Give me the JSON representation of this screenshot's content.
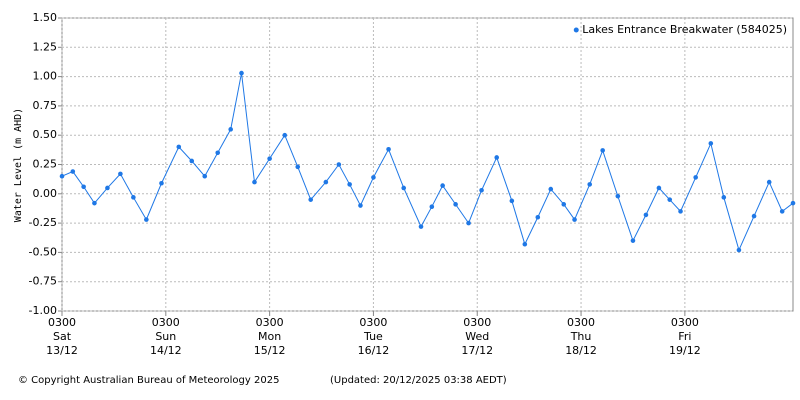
{
  "chart_data": {
    "type": "line",
    "y_label": "Water Level (m AHD)",
    "legend_position": "top-right",
    "grid": true,
    "xlim": [
      "13/12 03:00",
      "20/12 04:00"
    ],
    "xticks": [
      {
        "value": "13/12 03:00",
        "label": [
          "0300",
          "Sat",
          "13/12"
        ]
      },
      {
        "value": "14/12 03:00",
        "label": [
          "0300",
          "Sun",
          "14/12"
        ]
      },
      {
        "value": "15/12 03:00",
        "label": [
          "0300",
          "Mon",
          "15/12"
        ]
      },
      {
        "value": "16/12 03:00",
        "label": [
          "0300",
          "Tue",
          "16/12"
        ]
      },
      {
        "value": "17/12 03:00",
        "label": [
          "0300",
          "Wed",
          "17/12"
        ]
      },
      {
        "value": "18/12 03:00",
        "label": [
          "0300",
          "Thu",
          "18/12"
        ]
      },
      {
        "value": "19/12 03:00",
        "label": [
          "0300",
          "Fri",
          "19/12"
        ]
      }
    ],
    "ylim": [
      -1.0,
      1.5
    ],
    "yticks": [
      {
        "value": 1.5,
        "label": "1.50"
      },
      {
        "value": 1.25,
        "label": "1.25"
      },
      {
        "value": 1.0,
        "label": "1.00"
      },
      {
        "value": 0.75,
        "label": "0.75"
      },
      {
        "value": 0.5,
        "label": "0.50"
      },
      {
        "value": 0.25,
        "label": "0.25"
      },
      {
        "value": 0,
        "label": "0.00"
      },
      {
        "value": -0.25,
        "label": "-0.25"
      },
      {
        "value": -0.5,
        "label": "-0.50"
      },
      {
        "value": -0.75,
        "label": "-0.75"
      },
      {
        "value": -1.0,
        "label": "-1.00"
      }
    ],
    "x": [
      "13/12 03:00",
      "13/12 05:30",
      "13/12 08:00",
      "13/12 10:30",
      "13/12 13:30",
      "13/12 16:30",
      "13/12 19:30",
      "13/12 22:30",
      "14/12 02:00",
      "14/12 06:00",
      "14/12 09:00",
      "14/12 12:00",
      "14/12 15:00",
      "14/12 18:00",
      "14/12 20:30",
      "14/12 23:30",
      "15/12 03:00",
      "15/12 06:30",
      "15/12 09:30",
      "15/12 12:30",
      "15/12 16:00",
      "15/12 19:00",
      "15/12 21:30",
      "16/12 00:00",
      "16/12 03:00",
      "16/12 06:30",
      "16/12 10:00",
      "16/12 14:00",
      "16/12 16:30",
      "16/12 19:00",
      "16/12 22:00",
      "17/12 01:00",
      "17/12 04:00",
      "17/12 07:30",
      "17/12 11:00",
      "17/12 14:00",
      "17/12 17:00",
      "17/12 20:00",
      "17/12 23:00",
      "18/12 01:30",
      "18/12 05:00",
      "18/12 08:00",
      "18/12 11:30",
      "18/12 15:00",
      "18/12 18:00",
      "18/12 21:00",
      "18/12 23:30",
      "19/12 02:00",
      "19/12 05:30",
      "19/12 09:00",
      "19/12 12:00",
      "19/12 15:30",
      "19/12 19:00",
      "19/12 22:30",
      "20/12 01:30",
      "20/12 04:00"
    ],
    "series": [
      {
        "name": "Lakes Entrance Breakwater (584025)",
        "color": "#1f78e6",
        "values": [
          0.15,
          0.19,
          0.06,
          -0.08,
          0.05,
          0.17,
          -0.03,
          -0.22,
          0.09,
          0.4,
          0.28,
          0.15,
          0.35,
          0.55,
          1.03,
          0.1,
          0.3,
          0.5,
          0.23,
          -0.05,
          0.1,
          0.25,
          0.08,
          -0.1,
          0.14,
          0.38,
          0.05,
          -0.28,
          -0.11,
          0.07,
          -0.09,
          -0.25,
          0.03,
          0.31,
          -0.06,
          -0.43,
          -0.2,
          0.04,
          -0.09,
          -0.22,
          0.08,
          0.37,
          -0.02,
          -0.4,
          -0.18,
          0.05,
          -0.05,
          -0.15,
          0.14,
          0.43,
          -0.03,
          -0.48,
          -0.19,
          0.1,
          -0.15,
          -0.08
        ]
      }
    ]
  },
  "footer": {
    "copyright": "© Copyright Australian Bureau of Meteorology 2025",
    "updated": "(Updated: 20/12/2025 03:38 AEDT)"
  }
}
